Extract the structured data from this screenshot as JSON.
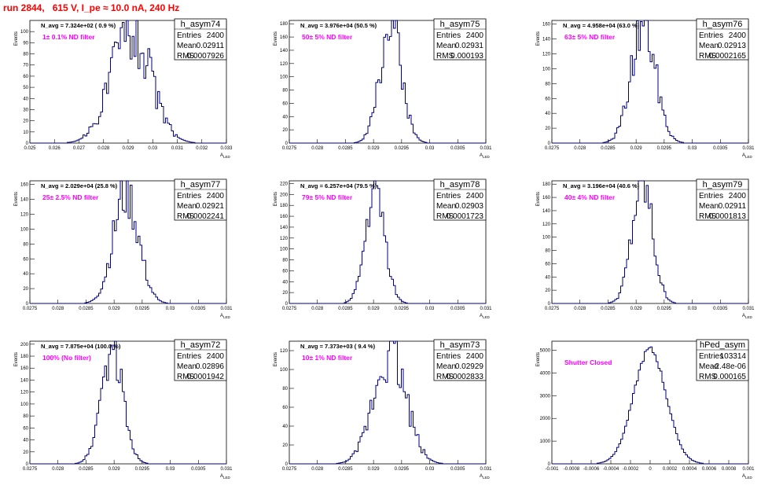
{
  "run_title": "run 2844,   615 V, I_pe ≈ 10.0 nA, 240 Hz",
  "colors": {
    "histogram": "#000080",
    "title": "#ff0000",
    "filter_label": "#ff00ff"
  },
  "chart_data": [
    {
      "type": "histogram",
      "name": "h_asym74",
      "navg": "N_avg = 7.324e+02 ( 0.9 %)",
      "filter": "1± 0.1% ND filter",
      "stats": {
        "entries": "2400",
        "mean": "0.02911",
        "rms": "0.0007926"
      },
      "xlabel": "A",
      "xlabel_sub": "LED",
      "ylabel": "Events",
      "xlim": [
        0.025,
        0.033
      ],
      "ylim": [
        0,
        110
      ],
      "xticks": [
        "0.025",
        "0.026",
        "0.027",
        "0.028",
        "0.029",
        "0.03",
        "0.031",
        "0.032",
        "0.033"
      ],
      "yticks": [
        "0",
        "10",
        "20",
        "30",
        "40",
        "50",
        "60",
        "70",
        "80",
        "90",
        "100"
      ],
      "mean": 0.02911,
      "sigma": 0.0007926,
      "peak": 104,
      "noise": 0.3,
      "seed": 74
    },
    {
      "type": "histogram",
      "name": "h_asym75",
      "navg": "N_avg = 3.976e+04 (50.5 %)",
      "filter": "50± 5% ND filter",
      "stats": {
        "entries": "2400",
        "mean": "0.02931",
        "rms": "0.000193"
      },
      "xlabel": "A",
      "xlabel_sub": "LED",
      "ylabel": "Events",
      "xlim": [
        0.0275,
        0.031
      ],
      "ylim": [
        0,
        185
      ],
      "xticks": [
        "0.0275",
        "0.028",
        "0.0285",
        "0.029",
        "0.0295",
        "0.03",
        "0.0305",
        "0.031"
      ],
      "yticks": [
        "0",
        "20",
        "40",
        "60",
        "80",
        "100",
        "120",
        "140",
        "160",
        "180"
      ],
      "mean": 0.02931,
      "sigma": 0.000193,
      "peak": 178,
      "noise": 0.25,
      "seed": 75
    },
    {
      "type": "histogram",
      "name": "h_asym76",
      "navg": "N_avg = 4.958e+04 (63.0 %)",
      "filter": "63± 5% ND filter",
      "stats": {
        "entries": "2400",
        "mean": "0.02913",
        "rms": "0.0002165"
      },
      "xlabel": "A",
      "xlabel_sub": "LED",
      "ylabel": "Events",
      "xlim": [
        0.0275,
        0.031
      ],
      "ylim": [
        0,
        165
      ],
      "xticks": [
        "0.0275",
        "0.028",
        "0.0285",
        "0.029",
        "0.0295",
        "0.03",
        "0.0305",
        "0.031"
      ],
      "yticks": [
        "0",
        "20",
        "40",
        "60",
        "80",
        "100",
        "120",
        "140",
        "160"
      ],
      "mean": 0.02913,
      "sigma": 0.0002165,
      "peak": 158,
      "noise": 0.25,
      "seed": 76
    },
    {
      "type": "histogram",
      "name": "h_asym77",
      "navg": "N_avg = 2.029e+04 (25.8 %)",
      "filter": "25± 2.5% ND filter",
      "stats": {
        "entries": "2400",
        "mean": "0.02921",
        "rms": "0.0002241"
      },
      "xlabel": "A",
      "xlabel_sub": "LED",
      "ylabel": "Events",
      "xlim": [
        0.0275,
        0.031
      ],
      "ylim": [
        0,
        165
      ],
      "xticks": [
        "0.0275",
        "0.028",
        "0.0285",
        "0.029",
        "0.0295",
        "0.03",
        "0.0305",
        "0.031"
      ],
      "yticks": [
        "0",
        "20",
        "40",
        "60",
        "80",
        "100",
        "120",
        "140",
        "160"
      ],
      "mean": 0.02921,
      "sigma": 0.0002241,
      "peak": 148,
      "noise": 0.25,
      "seed": 77
    },
    {
      "type": "histogram",
      "name": "h_asym78",
      "navg": "N_avg = 6.257e+04 (79.5 %)",
      "filter": "79± 5% ND filter",
      "stats": {
        "entries": "2400",
        "mean": "0.02903",
        "rms": "0.0001723"
      },
      "xlabel": "A",
      "xlabel_sub": "LED",
      "ylabel": "Events",
      "xlim": [
        0.0275,
        0.031
      ],
      "ylim": [
        0,
        225
      ],
      "xticks": [
        "0.0275",
        "0.028",
        "0.0285",
        "0.029",
        "0.0295",
        "0.03",
        "0.0305",
        "0.031"
      ],
      "yticks": [
        "0",
        "20",
        "40",
        "60",
        "80",
        "100",
        "120",
        "140",
        "160",
        "180",
        "200",
        "220"
      ],
      "mean": 0.02903,
      "sigma": 0.0001723,
      "peak": 205,
      "noise": 0.2,
      "seed": 78
    },
    {
      "type": "histogram",
      "name": "h_asym79",
      "navg": "N_avg = 3.196e+04 (40.6 %)",
      "filter": "40± 4% ND filter",
      "stats": {
        "entries": "2400",
        "mean": "0.02911",
        "rms": "0.0001813"
      },
      "xlabel": "A",
      "xlabel_sub": "LED",
      "ylabel": "Events",
      "xlim": [
        0.0275,
        0.031
      ],
      "ylim": [
        0,
        185
      ],
      "xticks": [
        "0.0275",
        "0.028",
        "0.0285",
        "0.029",
        "0.0295",
        "0.03",
        "0.0305",
        "0.031"
      ],
      "yticks": [
        "0",
        "20",
        "40",
        "60",
        "80",
        "100",
        "120",
        "140",
        "160",
        "180"
      ],
      "mean": 0.02911,
      "sigma": 0.0001813,
      "peak": 182,
      "noise": 0.25,
      "seed": 79
    },
    {
      "type": "histogram",
      "name": "h_asym72",
      "navg": "N_avg = 7.875e+04 (100.0 %)",
      "filter": "100% (No filter)",
      "stats": {
        "entries": "2400",
        "mean": "0.02896",
        "rms": "0.0001942"
      },
      "xlabel": "A",
      "xlabel_sub": "LED",
      "ylabel": "Events",
      "xlim": [
        0.0275,
        0.031
      ],
      "ylim": [
        0,
        205
      ],
      "xticks": [
        "0.0275",
        "0.028",
        "0.0285",
        "0.029",
        "0.0295",
        "0.03",
        "0.0305",
        "0.031"
      ],
      "yticks": [
        "0",
        "20",
        "40",
        "60",
        "80",
        "100",
        "120",
        "140",
        "160",
        "180",
        "200"
      ],
      "mean": 0.02896,
      "sigma": 0.0001942,
      "peak": 190,
      "noise": 0.25,
      "seed": 72
    },
    {
      "type": "histogram",
      "name": "h_asym73",
      "navg": "N_avg = 7.373e+03 ( 9.4 %)",
      "filter": "10± 1% ND filter",
      "stats": {
        "entries": "2400",
        "mean": "0.02929",
        "rms": "0.0002833"
      },
      "xlabel": "A",
      "xlabel_sub": "LED",
      "ylabel": "Events",
      "xlim": [
        0.0275,
        0.031
      ],
      "ylim": [
        0,
        130
      ],
      "xticks": [
        "0.0275",
        "0.028",
        "0.0285",
        "0.029",
        "0.0295",
        "0.03",
        "0.0305",
        "0.031"
      ],
      "yticks": [
        "0",
        "20",
        "40",
        "60",
        "80",
        "100",
        "120"
      ],
      "mean": 0.02929,
      "sigma": 0.0002833,
      "peak": 122,
      "noise": 0.28,
      "seed": 73
    },
    {
      "type": "histogram",
      "name": "hPed_asym",
      "navg": "",
      "filter": "Shutter Closed",
      "stats": {
        "entries": "103314",
        "mean": "-2.48e-06",
        "rms": "0.000165"
      },
      "xlabel": "A",
      "xlabel_sub": "LED",
      "ylabel": "Events",
      "xlim": [
        -0.001,
        0.001
      ],
      "ylim": [
        0,
        5400
      ],
      "xticks": [
        "-0.001",
        "-0.0008",
        "-0.0006",
        "-0.0004",
        "-0.0002",
        "0",
        "0.0002",
        "0.0004",
        "0.0006",
        "0.0008",
        "0.001"
      ],
      "yticks": [
        "0",
        "1000",
        "2000",
        "3000",
        "4000",
        "5000"
      ],
      "mean": -2.48e-06,
      "sigma": 0.000165,
      "peak": 5050,
      "noise": 0.03,
      "seed": 90
    }
  ]
}
